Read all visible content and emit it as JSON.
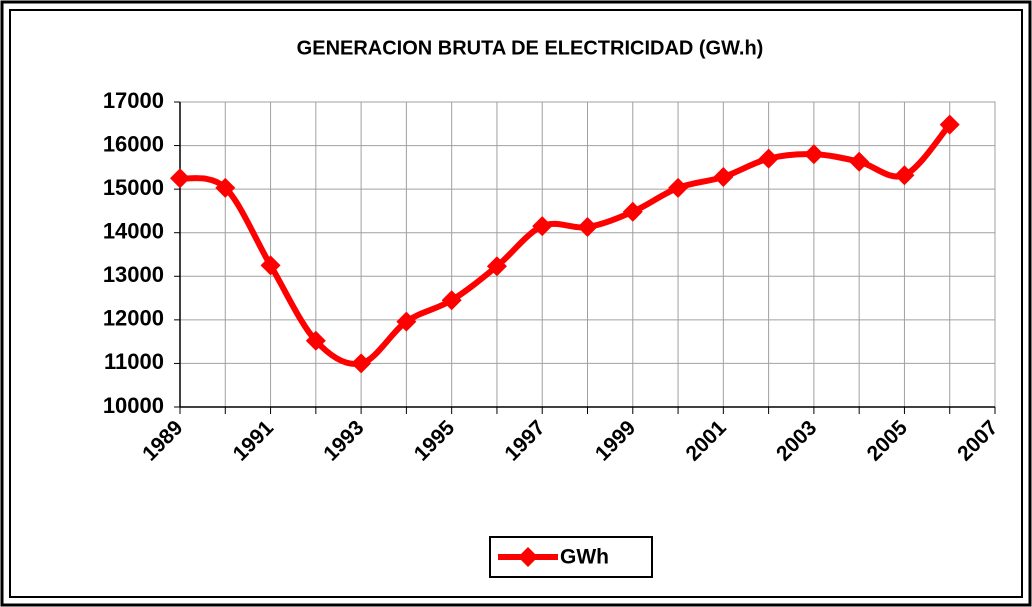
{
  "chart_data": {
    "type": "line",
    "title": "GENERACION BRUTA DE ELECTRICIDAD (GW.h)",
    "categories": [
      "1989",
      null,
      "1991",
      null,
      "1993",
      null,
      "1995",
      null,
      "1997",
      null,
      "1999",
      null,
      "2001",
      null,
      "2003",
      null,
      "2005",
      null,
      "2007"
    ],
    "series": [
      {
        "name": "GWh",
        "color": "#ff0000",
        "values": [
          15250,
          15030,
          13250,
          11520,
          11000,
          11960,
          12450,
          13230,
          14150,
          14130,
          14480,
          15030,
          15280,
          15700,
          15800,
          15630,
          15320,
          16480,
          null
        ]
      }
    ],
    "ylim": [
      10000,
      17000
    ],
    "yticks": [
      10000,
      11000,
      12000,
      13000,
      14000,
      15000,
      16000,
      17000
    ],
    "grid": true,
    "legend": "bottom",
    "smooth": true
  }
}
